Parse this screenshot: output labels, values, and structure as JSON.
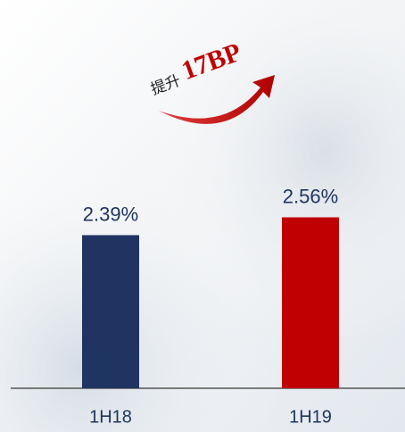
{
  "chart_data": {
    "type": "bar",
    "annotation": "提升",
    "annotation_highlight": "17BP",
    "categories": [
      "1H18",
      "1H19"
    ],
    "values": [
      2.39,
      2.56
    ],
    "value_labels": [
      "2.39%",
      "2.56%"
    ],
    "colors": [
      "#1f3461",
      "#c00000"
    ],
    "ylim": [
      0.93,
      2.93
    ]
  }
}
